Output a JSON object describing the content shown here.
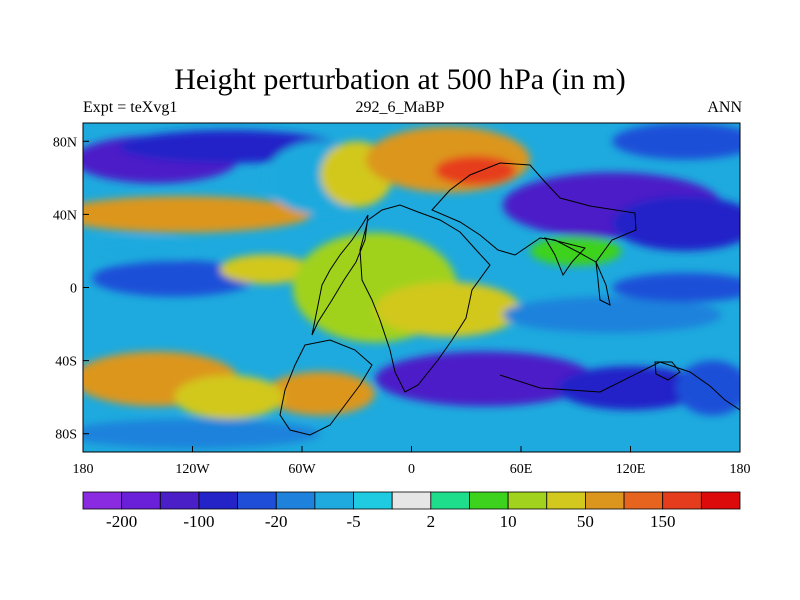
{
  "chart_data": {
    "type": "heatmap",
    "title": "Height perturbation at 500 hPa (in m)",
    "subtitle_left": "Expt = teXvg1",
    "subtitle_center": "292_6_MaBP",
    "subtitle_right": "ANN",
    "x_ticks": [
      {
        "value": -180,
        "label": "180"
      },
      {
        "value": -120,
        "label": "120W"
      },
      {
        "value": -60,
        "label": "60W"
      },
      {
        "value": 0,
        "label": "0"
      },
      {
        "value": 60,
        "label": "60E"
      },
      {
        "value": 120,
        "label": "120E"
      },
      {
        "value": 180,
        "label": "180"
      }
    ],
    "y_ticks": [
      {
        "value": 80,
        "label": "80N"
      },
      {
        "value": 40,
        "label": "40N"
      },
      {
        "value": 0,
        "label": "0"
      },
      {
        "value": -40,
        "label": "40S"
      },
      {
        "value": -80,
        "label": "80S"
      }
    ],
    "xlim": [
      -180,
      180
    ],
    "ylim": [
      -90,
      90
    ],
    "colorbar": {
      "colors": [
        "#8a2be2",
        "#6a1fd8",
        "#4b1fc8",
        "#2323c8",
        "#1f4fd8",
        "#1e82dc",
        "#1eaade",
        "#1ecbe0",
        "#e6e6e6",
        "#1ede8c",
        "#3cd21e",
        "#a0d21e",
        "#d2c81e",
        "#dc961e",
        "#e6641e",
        "#e63c1e",
        "#dc0a0a"
      ],
      "levels": [
        "-200",
        "-100",
        "-20",
        "-5",
        "2",
        "10",
        "50",
        "150"
      ]
    },
    "anomaly_regions": [
      {
        "lon": -140,
        "lat": 70,
        "value": -120,
        "rx": 45,
        "ry": 13
      },
      {
        "lon": -100,
        "lat": 77,
        "value": -60,
        "rx": 60,
        "ry": 9
      },
      {
        "lon": -125,
        "lat": 40,
        "value": 60,
        "rx": 70,
        "ry": 10
      },
      {
        "lon": -150,
        "lat": 20,
        "value": -10,
        "rx": 30,
        "ry": 7
      },
      {
        "lon": -130,
        "lat": 5,
        "value": -25,
        "rx": 45,
        "ry": 10
      },
      {
        "lon": -80,
        "lat": 10,
        "value": 20,
        "rx": 25,
        "ry": 8
      },
      {
        "lon": -50,
        "lat": 60,
        "value": -8,
        "rx": 30,
        "ry": 20
      },
      {
        "lon": -30,
        "lat": 62,
        "value": 30,
        "rx": 20,
        "ry": 18
      },
      {
        "lon": 20,
        "lat": 70,
        "value": 90,
        "rx": 45,
        "ry": 18
      },
      {
        "lon": 35,
        "lat": 64,
        "value": 150,
        "rx": 22,
        "ry": 8
      },
      {
        "lon": 110,
        "lat": 45,
        "value": -120,
        "rx": 60,
        "ry": 18
      },
      {
        "lon": 150,
        "lat": 35,
        "value": -60,
        "rx": 40,
        "ry": 15
      },
      {
        "lon": 150,
        "lat": 80,
        "value": -30,
        "rx": 40,
        "ry": 10
      },
      {
        "lon": 90,
        "lat": 20,
        "value": 8,
        "rx": 25,
        "ry": 8
      },
      {
        "lon": -20,
        "lat": 0,
        "value": 15,
        "rx": 45,
        "ry": 30
      },
      {
        "lon": 20,
        "lat": -12,
        "value": 20,
        "rx": 40,
        "ry": 15
      },
      {
        "lon": 110,
        "lat": -15,
        "value": -15,
        "rx": 60,
        "ry": 10
      },
      {
        "lon": 150,
        "lat": 0,
        "value": -25,
        "rx": 40,
        "ry": 8
      },
      {
        "lon": 40,
        "lat": -50,
        "value": -130,
        "rx": 60,
        "ry": 15
      },
      {
        "lon": 120,
        "lat": -55,
        "value": -60,
        "rx": 40,
        "ry": 12
      },
      {
        "lon": 165,
        "lat": -55,
        "value": -30,
        "rx": 20,
        "ry": 15
      },
      {
        "lon": -140,
        "lat": -50,
        "value": 70,
        "rx": 45,
        "ry": 15
      },
      {
        "lon": -50,
        "lat": -58,
        "value": 80,
        "rx": 30,
        "ry": 12
      },
      {
        "lon": -100,
        "lat": -60,
        "value": 45,
        "rx": 30,
        "ry": 12
      },
      {
        "lon": -120,
        "lat": -80,
        "value": -20,
        "rx": 70,
        "ry": 8
      }
    ]
  }
}
